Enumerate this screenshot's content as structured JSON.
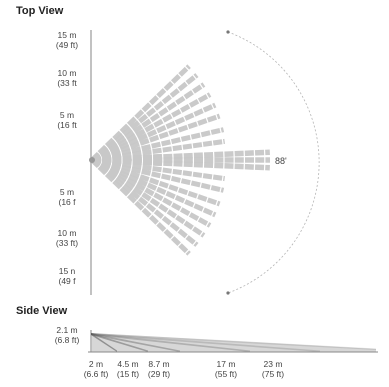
{
  "top_view": {
    "title": "Top View",
    "angle_label": "88'",
    "y_labels": [
      {
        "line1": "15 m",
        "line2": "(49 ft)"
      },
      {
        "line1": "10 m",
        "line2": "(33 ft"
      },
      {
        "line1": "5 m",
        "line2": "(16 ft"
      },
      {
        "line1": "5 m",
        "line2": "(16 f"
      },
      {
        "line1": "10 m",
        "line2": "(33 ft)"
      },
      {
        "line1": "15 n",
        "line2": "(49 f"
      }
    ]
  },
  "side_view": {
    "title": "Side View",
    "height_label": {
      "line1": "2.1 m",
      "line2": "(6.8 ft)"
    },
    "x_labels": [
      {
        "line1": "2 m",
        "line2": "(6.6 ft)"
      },
      {
        "line1": "4.5 m",
        "line2": "(15 ft)"
      },
      {
        "line1": "8.7 m",
        "line2": "(29 ft)"
      },
      {
        "line1": "17 m",
        "line2": "(55 ft)"
      },
      {
        "line1": "23 m",
        "line2": "(75 ft)"
      }
    ]
  },
  "colors": {
    "beam": "#c8c8c8",
    "axis": "#9a9a9a",
    "arc": "#b0b0b0"
  }
}
